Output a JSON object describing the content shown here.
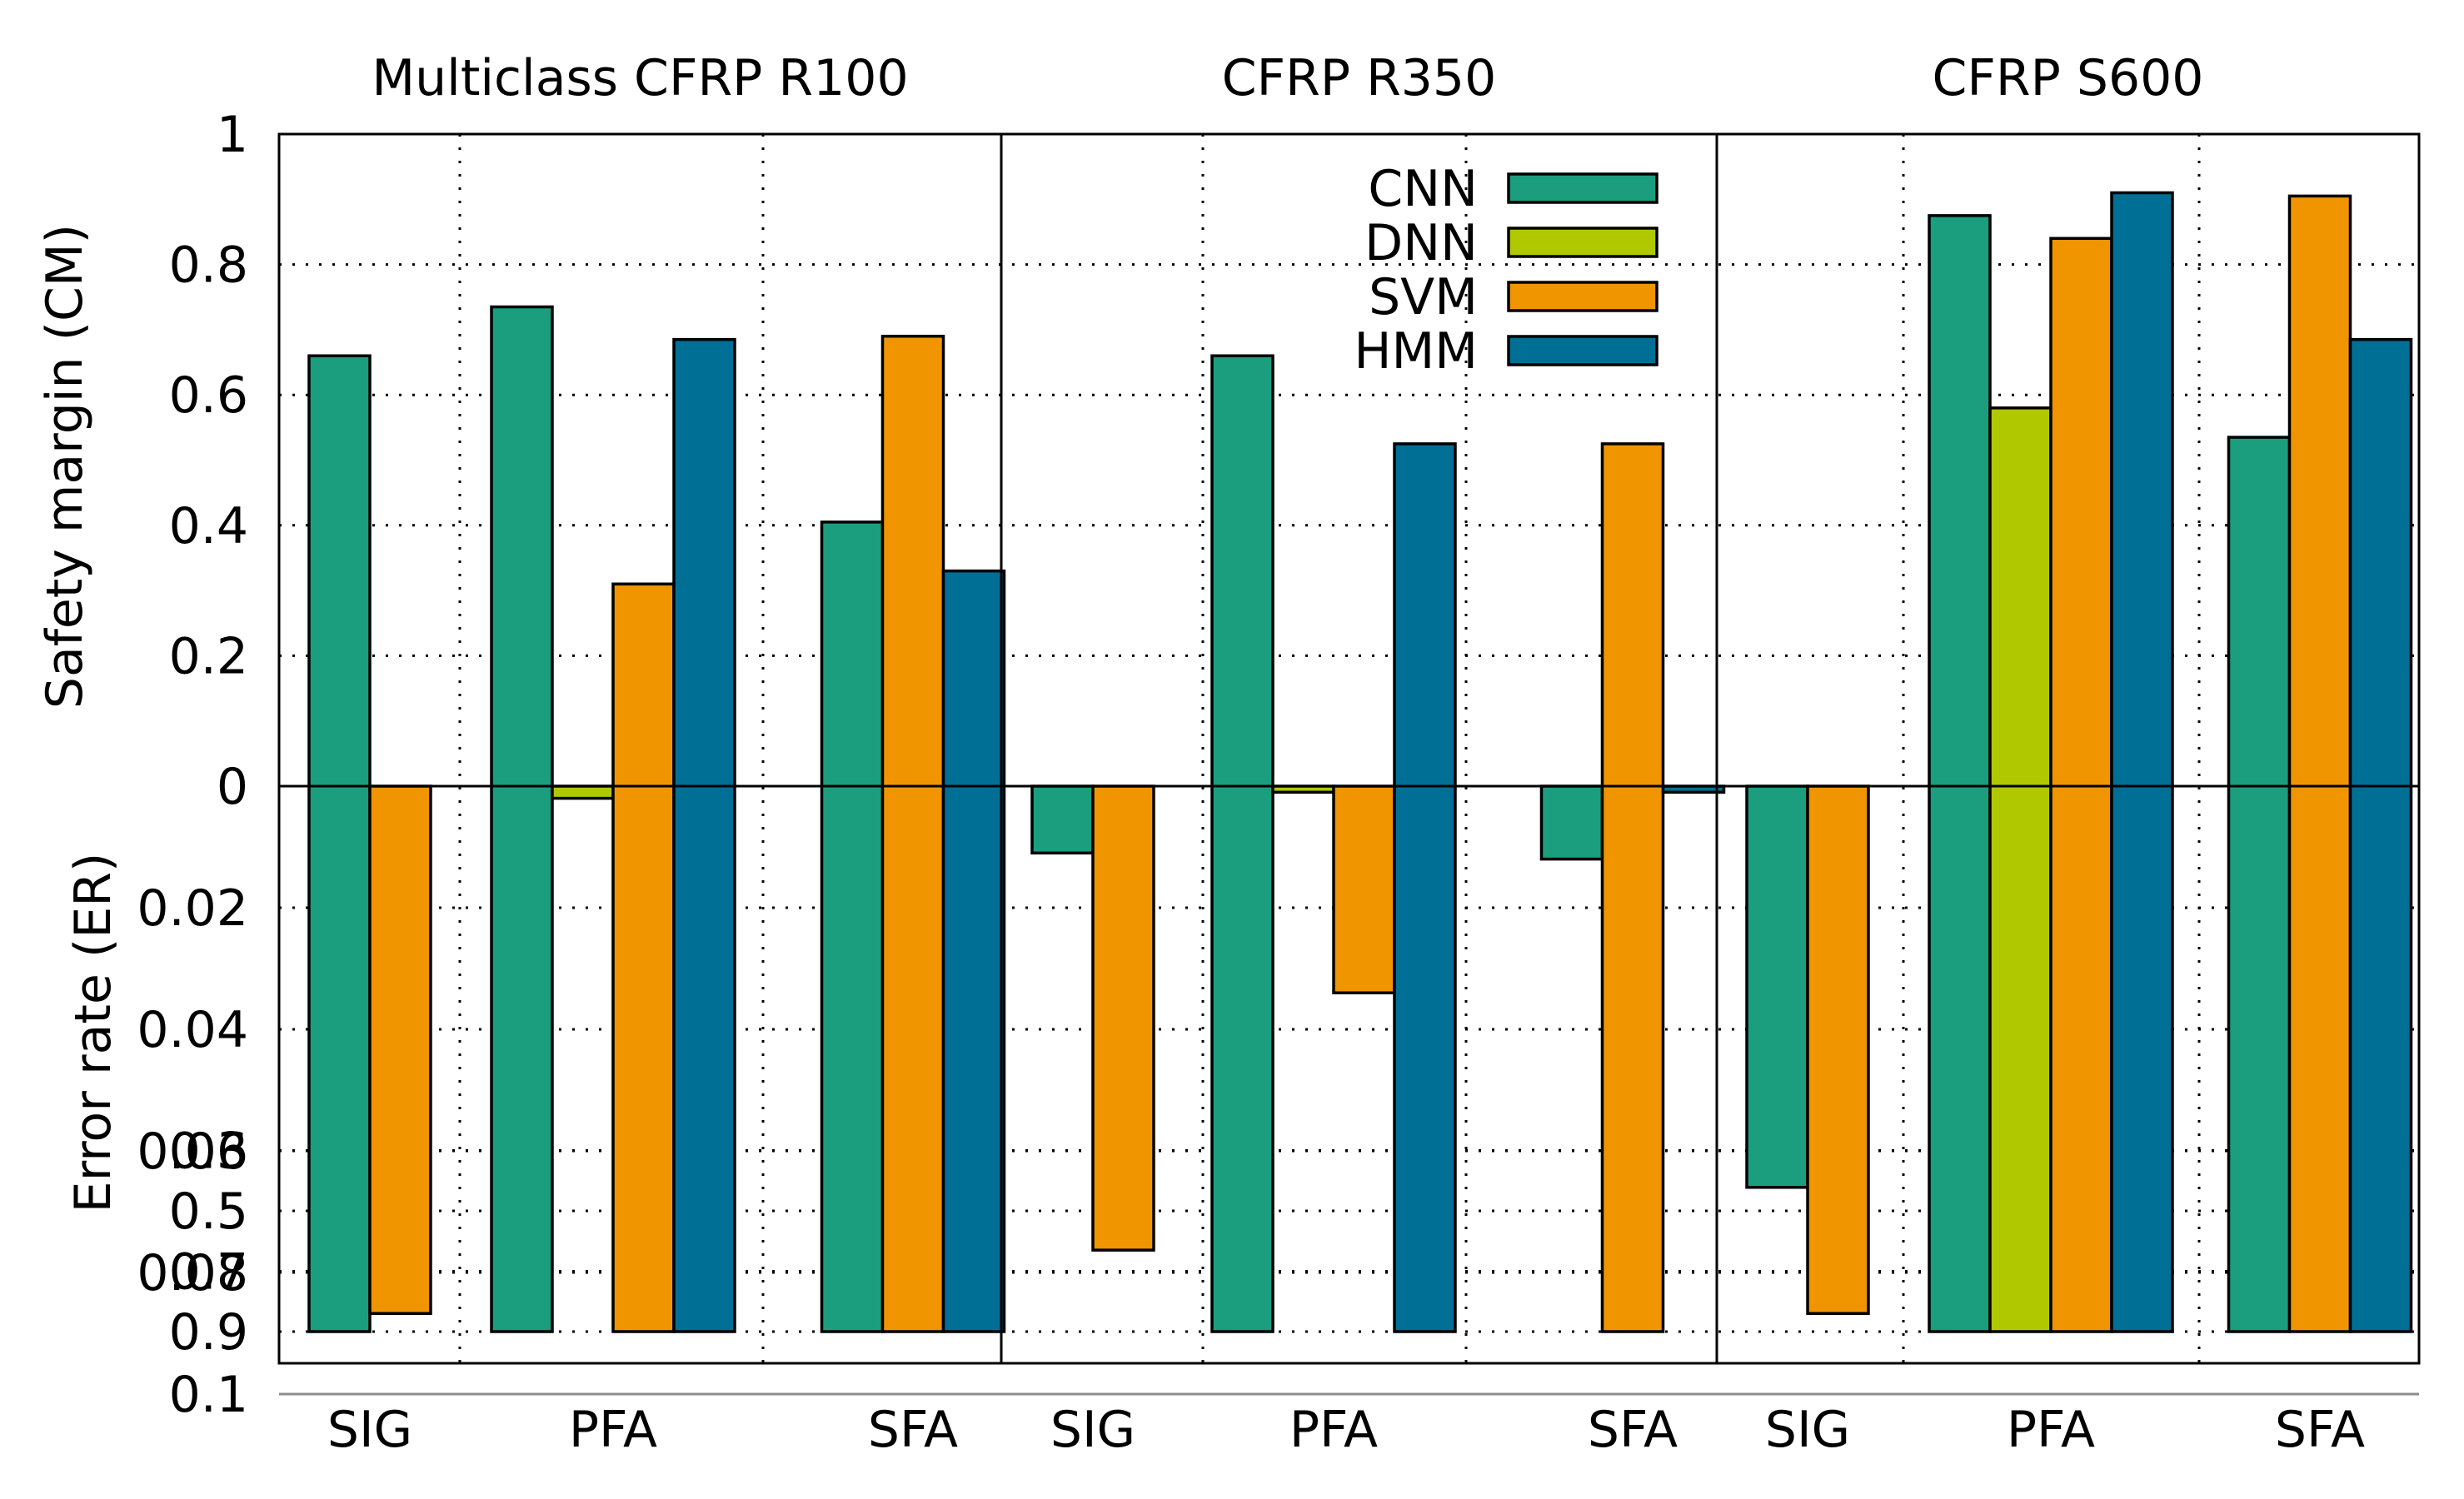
{
  "chart_data": {
    "type": "bar",
    "panels": [
      {
        "title": "Multiclass CFRP R100"
      },
      {
        "title": "CFRP R350"
      },
      {
        "title": "CFRP S600"
      }
    ],
    "categories": [
      "SIG",
      "PFA",
      "SFA"
    ],
    "series": [
      {
        "name": "CNN",
        "color": "#1a9e7e"
      },
      {
        "name": "DNN",
        "color": "#b0c800"
      },
      {
        "name": "SVM",
        "color": "#f09500"
      },
      {
        "name": "HMM",
        "color": "#006f96"
      }
    ],
    "note": "Each bar spans from its error rate (ER, lower half, downward axis) up to its safety margin (CM, upper half). null = no bar for that classifier.",
    "bars": [
      {
        "panel": 0,
        "category": "SIG",
        "series": "CNN",
        "cm": 0.66,
        "er": 0.9
      },
      {
        "panel": 0,
        "category": "SIG",
        "series": "DNN",
        "cm": null,
        "er": null
      },
      {
        "panel": 0,
        "category": "SIG",
        "series": "SVM",
        "cm": 0,
        "er": 0.84
      },
      {
        "panel": 0,
        "category": "SIG",
        "series": "HMM",
        "cm": null,
        "er": null
      },
      {
        "panel": 0,
        "category": "PFA",
        "series": "CNN",
        "cm": 0.735,
        "er": 0.9
      },
      {
        "panel": 0,
        "category": "PFA",
        "series": "DNN",
        "cm": 0,
        "er": 0.002
      },
      {
        "panel": 0,
        "category": "PFA",
        "series": "SVM",
        "cm": 0.31,
        "er": 0.9
      },
      {
        "panel": 0,
        "category": "PFA",
        "series": "HMM",
        "cm": 0.685,
        "er": 0.9
      },
      {
        "panel": 0,
        "category": "SFA",
        "series": "CNN",
        "cm": 0.405,
        "er": 0.9
      },
      {
        "panel": 0,
        "category": "SFA",
        "series": "DNN",
        "cm": null,
        "er": null
      },
      {
        "panel": 0,
        "category": "SFA",
        "series": "SVM",
        "cm": 0.69,
        "er": 0.9
      },
      {
        "panel": 0,
        "category": "SFA",
        "series": "HMM",
        "cm": 0.33,
        "er": 0.9
      },
      {
        "panel": 1,
        "category": "SIG",
        "series": "CNN",
        "cm": 0,
        "er": 0.011
      },
      {
        "panel": 1,
        "category": "SIG",
        "series": "DNN",
        "cm": null,
        "er": null
      },
      {
        "panel": 1,
        "category": "SIG",
        "series": "SVM",
        "cm": 0,
        "er": 0.63
      },
      {
        "panel": 1,
        "category": "SIG",
        "series": "HMM",
        "cm": null,
        "er": null
      },
      {
        "panel": 1,
        "category": "PFA",
        "series": "CNN",
        "cm": 0.66,
        "er": 0.9
      },
      {
        "panel": 1,
        "category": "PFA",
        "series": "DNN",
        "cm": 0,
        "er": 0.001
      },
      {
        "panel": 1,
        "category": "PFA",
        "series": "SVM",
        "cm": 0,
        "er": 0.034
      },
      {
        "panel": 1,
        "category": "PFA",
        "series": "HMM",
        "cm": 0.525,
        "er": 0.9
      },
      {
        "panel": 1,
        "category": "SFA",
        "series": "CNN",
        "cm": 0,
        "er": 0.012
      },
      {
        "panel": 1,
        "category": "SFA",
        "series": "DNN",
        "cm": null,
        "er": null
      },
      {
        "panel": 1,
        "category": "SFA",
        "series": "SVM",
        "cm": 0.525,
        "er": 0.9
      },
      {
        "panel": 1,
        "category": "SFA",
        "series": "HMM",
        "cm": 0,
        "er": 0.001
      },
      {
        "panel": 2,
        "category": "SIG",
        "series": "CNN",
        "cm": 0,
        "er": 0.066
      },
      {
        "panel": 2,
        "category": "SIG",
        "series": "DNN",
        "cm": null,
        "er": null
      },
      {
        "panel": 2,
        "category": "SIG",
        "series": "SVM",
        "cm": 0,
        "er": 0.84
      },
      {
        "panel": 2,
        "category": "SIG",
        "series": "HMM",
        "cm": null,
        "er": null
      },
      {
        "panel": 2,
        "category": "PFA",
        "series": "CNN",
        "cm": 0.875,
        "er": 0.9
      },
      {
        "panel": 2,
        "category": "PFA",
        "series": "DNN",
        "cm": 0.58,
        "er": 0.9
      },
      {
        "panel": 2,
        "category": "PFA",
        "series": "SVM",
        "cm": 0.84,
        "er": 0.9
      },
      {
        "panel": 2,
        "category": "PFA",
        "series": "HMM",
        "cm": 0.91,
        "er": 0.9
      },
      {
        "panel": 2,
        "category": "SFA",
        "series": "CNN",
        "cm": 0.535,
        "er": 0.9
      },
      {
        "panel": 2,
        "category": "SFA",
        "series": "DNN",
        "cm": null,
        "er": null
      },
      {
        "panel": 2,
        "category": "SFA",
        "series": "SVM",
        "cm": 0.905,
        "er": 0.9
      },
      {
        "panel": 2,
        "category": "SFA",
        "series": "HMM",
        "cm": 0.685,
        "er": 0.9
      }
    ],
    "ylabel_top": "Safety margin (CM)",
    "ylabel_bottom": "Error rate (ER)",
    "ylim_top": [
      0,
      1
    ],
    "yticks_top": [
      "0",
      "0.2",
      "0.4",
      "0.6",
      "0.8",
      "1"
    ],
    "yticks_bottom": [
      "0.02",
      "0.04",
      "0.06",
      "0.08",
      "0.1",
      "0.3",
      "0.5",
      "0.7",
      "0.9"
    ],
    "bottom_scale": "piecewise: linear 0 to 0.1, then linear 0.1 to 0.9 (compressed)",
    "reference_line_er": 0.1,
    "legend_position": "top, inside middle panel",
    "grid": true
  }
}
